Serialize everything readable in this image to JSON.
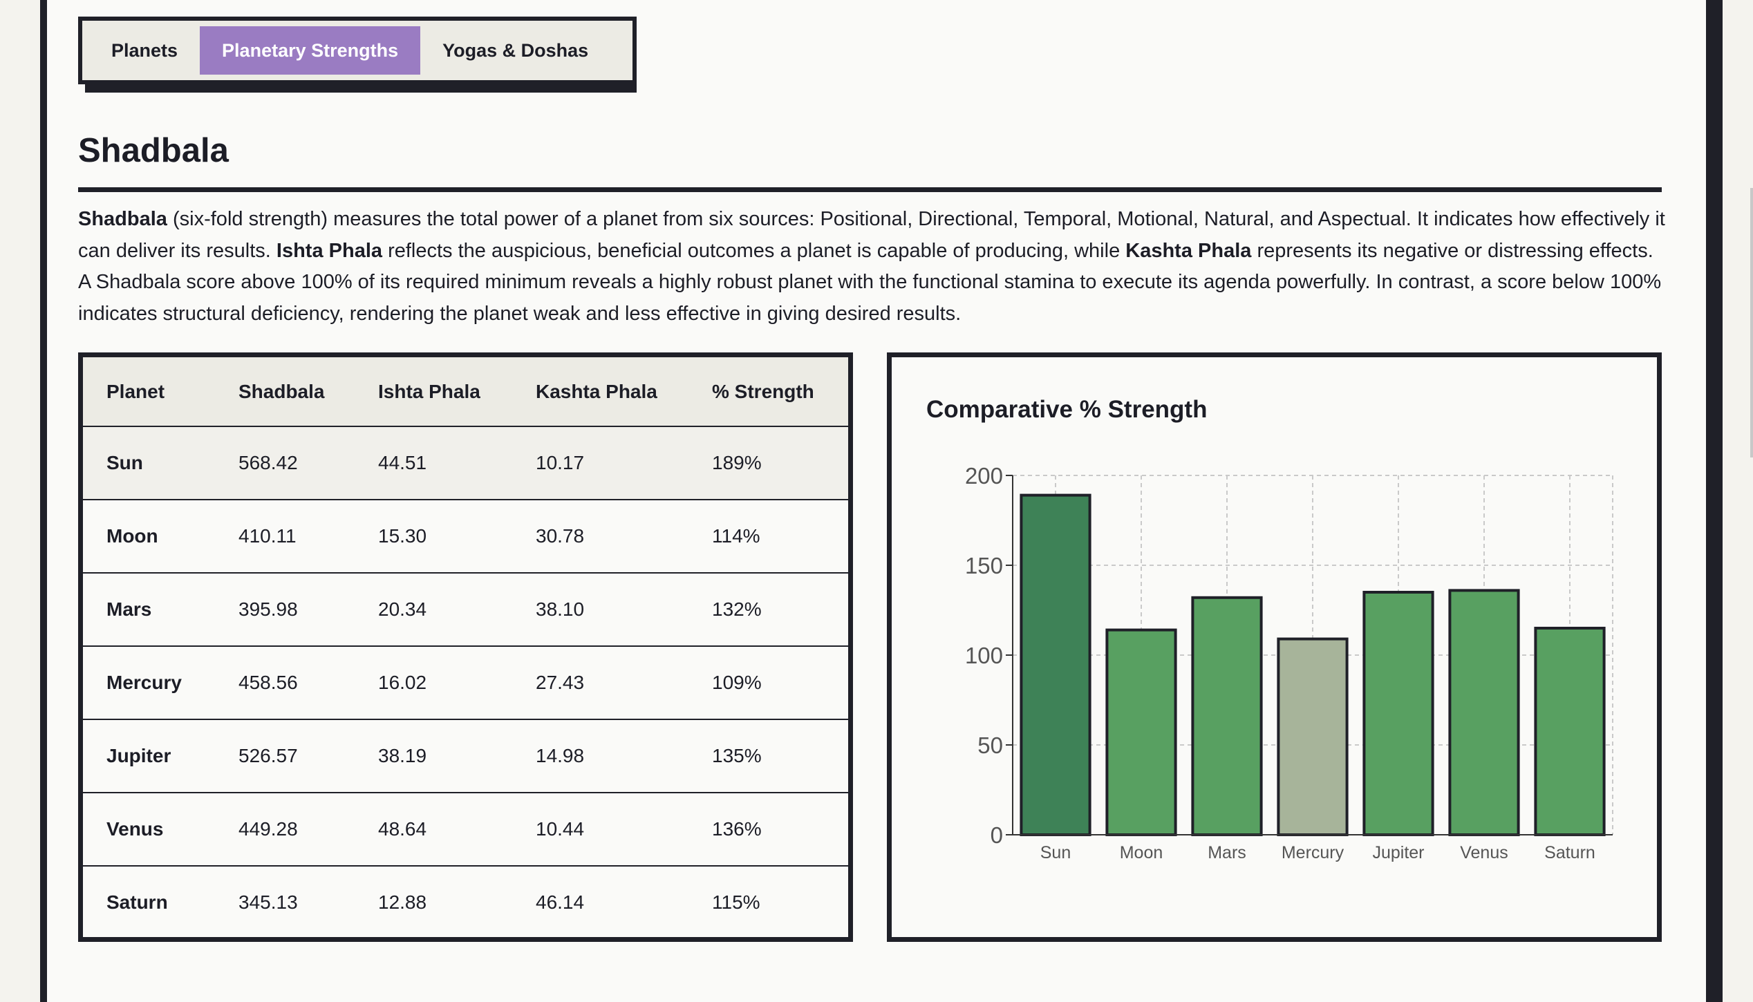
{
  "tabs": [
    {
      "label": "Planets",
      "active": false
    },
    {
      "label": "Planetary Strengths",
      "active": true
    },
    {
      "label": "Yogas & Doshas",
      "active": false
    }
  ],
  "section": {
    "title": "Shadbala",
    "description": {
      "term1": "Shadbala",
      "text1": " (six-fold strength) measures the total power of a planet from six sources: Positional, Directional, Temporal, Motional, Natural, and Aspectual. It indicates how effectively it can deliver its results. ",
      "term2": "Ishta Phala",
      "text2": " reflects the auspicious, beneficial outcomes a planet is capable of producing, while ",
      "term3": "Kashta Phala",
      "text3": " represents its negative or distressing effects. A Shadbala score above 100% of its required minimum reveals a highly robust planet with the functional stamina to execute its agenda powerfully. In contrast, a score below 100% indicates structural deficiency, rendering the planet weak and less effective in giving desired results."
    }
  },
  "table": {
    "headers": [
      "Planet",
      "Shadbala",
      "Ishta Phala",
      "Kashta Phala",
      "% Strength"
    ],
    "rows": [
      {
        "planet": "Sun",
        "shadbala": "568.42",
        "ishta": "44.51",
        "kashta": "10.17",
        "strength": "189%"
      },
      {
        "planet": "Moon",
        "shadbala": "410.11",
        "ishta": "15.30",
        "kashta": "30.78",
        "strength": "114%"
      },
      {
        "planet": "Mars",
        "shadbala": "395.98",
        "ishta": "20.34",
        "kashta": "38.10",
        "strength": "132%"
      },
      {
        "planet": "Mercury",
        "shadbala": "458.56",
        "ishta": "16.02",
        "kashta": "27.43",
        "strength": "109%"
      },
      {
        "planet": "Jupiter",
        "shadbala": "526.57",
        "ishta": "38.19",
        "kashta": "14.98",
        "strength": "135%"
      },
      {
        "planet": "Venus",
        "shadbala": "449.28",
        "ishta": "48.64",
        "kashta": "10.44",
        "strength": "136%"
      },
      {
        "planet": "Saturn",
        "shadbala": "345.13",
        "ishta": "12.88",
        "kashta": "46.14",
        "strength": "115%"
      }
    ]
  },
  "chart_data": {
    "type": "bar",
    "title": "Comparative % Strength",
    "categories": [
      "Sun",
      "Moon",
      "Mars",
      "Mercury",
      "Jupiter",
      "Venus",
      "Saturn"
    ],
    "values": [
      189,
      114,
      132,
      109,
      135,
      136,
      115
    ],
    "ylim": [
      0,
      200
    ],
    "yticks": [
      0,
      50,
      100,
      150,
      200
    ],
    "grid": true,
    "colors": {
      "strongest": "#3e8257",
      "normal": "#58a061",
      "weakest": "#a7b49a",
      "stroke": "#1f2028",
      "grid": "#c9c9c9"
    }
  },
  "colors": {
    "accent": "#9a7cc2",
    "border": "#1f2028",
    "background": "#fafaf8"
  }
}
